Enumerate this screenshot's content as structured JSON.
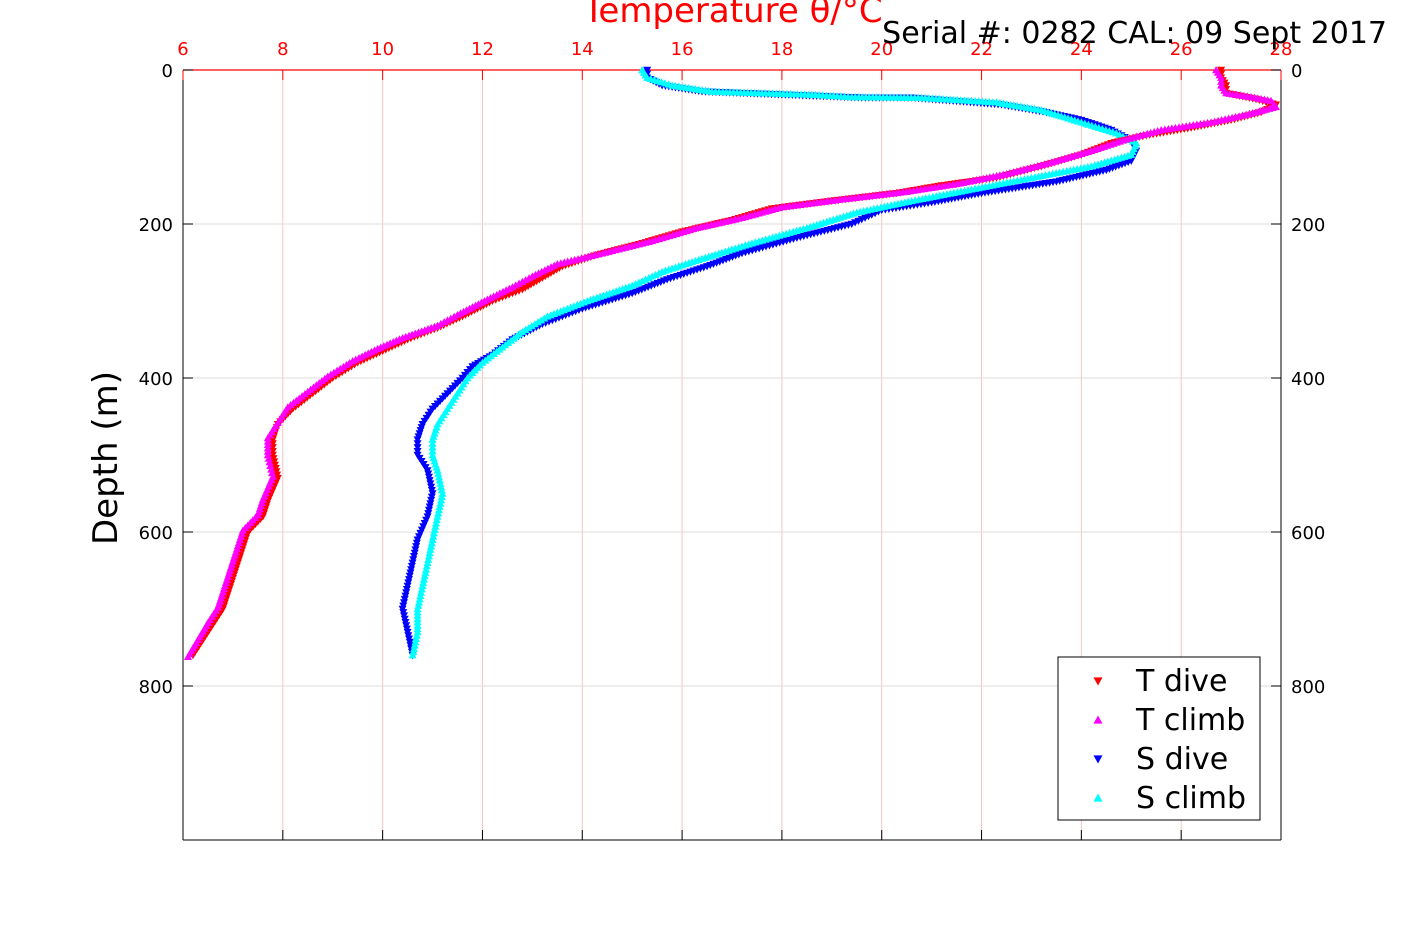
{
  "chart_data": {
    "type": "scatter",
    "title": "Temperature θ/°C",
    "annotation": "Serial #: 0282  CAL: 09 Sept 2017",
    "xlabel": "Temperature θ/°C",
    "ylabel": "Depth (m)",
    "xlim": [
      6,
      28
    ],
    "ylim": [
      0,
      1000
    ],
    "y_reversed": true,
    "x_axis_position": "top",
    "x_ticks": [
      6,
      8,
      10,
      12,
      14,
      16,
      18,
      20,
      22,
      24,
      26,
      28
    ],
    "y_ticks": [
      0,
      200,
      400,
      600,
      800
    ],
    "grid": true,
    "legend_position": "bottom-right",
    "colors": {
      "x_axis": "#ff0000",
      "grid_x": "#f5c6c6",
      "grid_y": "#dddddd"
    },
    "series": [
      {
        "name": "T dive",
        "marker": "triangle-down",
        "color": "#ff0000",
        "points": [
          [
            26.8,
            0
          ],
          [
            26.8,
            10
          ],
          [
            26.9,
            20
          ],
          [
            26.9,
            30
          ],
          [
            27.5,
            38
          ],
          [
            27.9,
            45
          ],
          [
            27.6,
            55
          ],
          [
            27.0,
            65
          ],
          [
            26.2,
            75
          ],
          [
            25.3,
            85
          ],
          [
            24.6,
            95
          ],
          [
            24.0,
            110
          ],
          [
            23.2,
            125
          ],
          [
            22.3,
            140
          ],
          [
            21.2,
            150
          ],
          [
            20.3,
            160
          ],
          [
            19.0,
            170
          ],
          [
            17.8,
            180
          ],
          [
            17.0,
            195
          ],
          [
            16.0,
            210
          ],
          [
            15.2,
            225
          ],
          [
            14.3,
            240
          ],
          [
            13.6,
            255
          ],
          [
            13.2,
            270
          ],
          [
            12.8,
            285
          ],
          [
            12.2,
            300
          ],
          [
            11.6,
            320
          ],
          [
            11.1,
            335
          ],
          [
            10.5,
            350
          ],
          [
            10.0,
            365
          ],
          [
            9.5,
            380
          ],
          [
            9.0,
            400
          ],
          [
            8.6,
            420
          ],
          [
            8.2,
            440
          ],
          [
            7.9,
            460
          ],
          [
            7.8,
            480
          ],
          [
            7.8,
            500
          ],
          [
            7.9,
            530
          ],
          [
            7.7,
            560
          ],
          [
            7.6,
            580
          ],
          [
            7.3,
            600
          ],
          [
            7.2,
            620
          ],
          [
            7.1,
            640
          ],
          [
            7.0,
            660
          ],
          [
            6.9,
            680
          ],
          [
            6.8,
            700
          ],
          [
            6.6,
            720
          ],
          [
            6.4,
            740
          ],
          [
            6.2,
            760
          ]
        ]
      },
      {
        "name": "T climb",
        "marker": "triangle-up",
        "color": "#ff00ff",
        "points": [
          [
            26.7,
            0
          ],
          [
            26.8,
            10
          ],
          [
            26.8,
            20
          ],
          [
            26.9,
            30
          ],
          [
            27.4,
            35
          ],
          [
            27.8,
            40
          ],
          [
            27.9,
            48
          ],
          [
            27.3,
            58
          ],
          [
            26.6,
            68
          ],
          [
            25.6,
            78
          ],
          [
            24.9,
            90
          ],
          [
            24.2,
            105
          ],
          [
            23.4,
            120
          ],
          [
            22.5,
            135
          ],
          [
            21.5,
            148
          ],
          [
            20.5,
            158
          ],
          [
            19.2,
            168
          ],
          [
            18.0,
            178
          ],
          [
            17.2,
            192
          ],
          [
            16.3,
            205
          ],
          [
            15.4,
            222
          ],
          [
            14.4,
            238
          ],
          [
            13.5,
            252
          ],
          [
            13.0,
            268
          ],
          [
            12.6,
            282
          ],
          [
            12.1,
            298
          ],
          [
            11.5,
            318
          ],
          [
            11.1,
            332
          ],
          [
            10.4,
            348
          ],
          [
            9.9,
            362
          ],
          [
            9.4,
            378
          ],
          [
            8.9,
            398
          ],
          [
            8.5,
            418
          ],
          [
            8.1,
            438
          ],
          [
            7.9,
            458
          ],
          [
            7.7,
            478
          ],
          [
            7.7,
            500
          ],
          [
            7.8,
            528
          ],
          [
            7.6,
            558
          ],
          [
            7.5,
            578
          ],
          [
            7.2,
            598
          ],
          [
            7.1,
            618
          ],
          [
            7.0,
            638
          ],
          [
            6.9,
            658
          ],
          [
            6.8,
            678
          ],
          [
            6.7,
            698
          ],
          [
            6.5,
            718
          ],
          [
            6.3,
            740
          ],
          [
            6.1,
            762
          ]
        ]
      },
      {
        "name": "S dive",
        "marker": "triangle-down",
        "color": "#0000ff",
        "points": [
          [
            15.3,
            0
          ],
          [
            15.3,
            10
          ],
          [
            15.6,
            20
          ],
          [
            16.4,
            28
          ],
          [
            19.6,
            36
          ],
          [
            20.6,
            36
          ],
          [
            22.4,
            45
          ],
          [
            23.3,
            55
          ],
          [
            24.0,
            65
          ],
          [
            24.6,
            78
          ],
          [
            25.0,
            92
          ],
          [
            25.1,
            105
          ],
          [
            25.0,
            118
          ],
          [
            24.5,
            130
          ],
          [
            23.5,
            145
          ],
          [
            22.0,
            160
          ],
          [
            21.0,
            172
          ],
          [
            20.0,
            182
          ],
          [
            19.4,
            200
          ],
          [
            18.3,
            218
          ],
          [
            17.2,
            238
          ],
          [
            16.5,
            255
          ],
          [
            15.7,
            272
          ],
          [
            15.0,
            290
          ],
          [
            14.0,
            310
          ],
          [
            13.2,
            330
          ],
          [
            12.6,
            350
          ],
          [
            12.2,
            370
          ],
          [
            11.8,
            385
          ],
          [
            11.6,
            400
          ],
          [
            11.3,
            420
          ],
          [
            11.0,
            440
          ],
          [
            10.8,
            460
          ],
          [
            10.7,
            480
          ],
          [
            10.7,
            500
          ],
          [
            10.9,
            520
          ],
          [
            11.0,
            550
          ],
          [
            10.9,
            580
          ],
          [
            10.7,
            610
          ],
          [
            10.6,
            640
          ],
          [
            10.5,
            670
          ],
          [
            10.4,
            700
          ],
          [
            10.5,
            730
          ],
          [
            10.6,
            760
          ]
        ]
      },
      {
        "name": "S climb",
        "marker": "triangle-up",
        "color": "#00ffff",
        "points": [
          [
            15.2,
            0
          ],
          [
            15.3,
            10
          ],
          [
            15.8,
            20
          ],
          [
            16.6,
            28
          ],
          [
            17.6,
            30
          ],
          [
            18.6,
            32
          ],
          [
            19.4,
            35
          ],
          [
            20.8,
            36
          ],
          [
            22.3,
            42
          ],
          [
            23.2,
            52
          ],
          [
            24.0,
            68
          ],
          [
            24.7,
            82
          ],
          [
            25.1,
            95
          ],
          [
            25.0,
            110
          ],
          [
            24.2,
            125
          ],
          [
            23.0,
            140
          ],
          [
            21.8,
            155
          ],
          [
            20.6,
            170
          ],
          [
            19.5,
            185
          ],
          [
            18.5,
            205
          ],
          [
            17.4,
            225
          ],
          [
            16.4,
            245
          ],
          [
            15.6,
            262
          ],
          [
            15.0,
            280
          ],
          [
            14.1,
            300
          ],
          [
            13.3,
            320
          ],
          [
            12.8,
            340
          ],
          [
            12.4,
            360
          ],
          [
            12.0,
            380
          ],
          [
            11.7,
            400
          ],
          [
            11.5,
            420
          ],
          [
            11.3,
            440
          ],
          [
            11.1,
            460
          ],
          [
            11.0,
            480
          ],
          [
            11.0,
            500
          ],
          [
            11.1,
            520
          ],
          [
            11.2,
            550
          ],
          [
            11.1,
            580
          ],
          [
            11.0,
            610
          ],
          [
            10.9,
            640
          ],
          [
            10.8,
            670
          ],
          [
            10.7,
            700
          ],
          [
            10.7,
            730
          ],
          [
            10.6,
            760
          ]
        ]
      }
    ]
  }
}
